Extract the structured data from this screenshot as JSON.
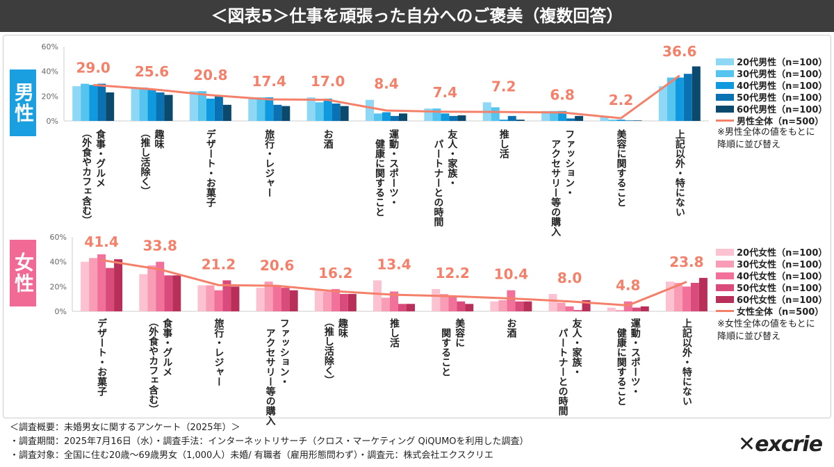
{
  "title": "＜図表5＞仕事を頑張った自分へのご褒美（複数回答）",
  "chart_data": [
    {
      "type": "bar+line",
      "group": "男性",
      "ylim": [
        0,
        60
      ],
      "yticks": [
        "60%",
        "40%",
        "20%",
        "0%"
      ],
      "categories": [
        [
          "食事・グルメ",
          "（外食やカフェ含む）"
        ],
        [
          "趣味",
          "（推し活除く）"
        ],
        [
          "デザート・お菓子"
        ],
        [
          "旅行・レジャー"
        ],
        [
          "お酒"
        ],
        [
          "運動・スポーツ・",
          "健康に関すること"
        ],
        [
          "友人・家族・",
          "パートナーとの時間"
        ],
        [
          "推し活"
        ],
        [
          "ファッション・",
          "アクセサリー等の購入"
        ],
        [
          "美容に関すること"
        ],
        [
          "上記以外・特にない"
        ]
      ],
      "series": [
        {
          "name": "20代男性（n=100）",
          "color": "#8fd8f5",
          "values": [
            28,
            27,
            24,
            19,
            19,
            17,
            10,
            15,
            8,
            4,
            28
          ]
        },
        {
          "name": "30代男性（n=100）",
          "color": "#55c4ef",
          "values": [
            30,
            27,
            24,
            19,
            15,
            6,
            10,
            11,
            8,
            1,
            35
          ]
        },
        {
          "name": "40代男性（n=100）",
          "color": "#0f9ae0",
          "values": [
            29,
            26,
            18,
            19,
            18,
            7,
            6,
            1,
            8,
            1,
            35
          ]
        },
        {
          "name": "50代男性（n=100）",
          "color": "#0a72b2",
          "values": [
            30,
            23,
            20,
            13,
            14,
            4,
            4,
            4,
            2,
            0.4,
            38
          ]
        },
        {
          "name": "60代男性（n=100）",
          "color": "#0b4a6c",
          "values": [
            23,
            21,
            13,
            12,
            12,
            6,
            4.5,
            1,
            4,
            0.4,
            44
          ]
        }
      ],
      "line": {
        "name": "男性全体（n=500）",
        "color": "#f4806a",
        "values": [
          29.0,
          25.6,
          20.8,
          17.4,
          17.0,
          8.4,
          7.4,
          7.2,
          6.8,
          2.2,
          36.6
        ],
        "labels": [
          "29.0",
          "25.6",
          "20.8",
          "17.4",
          "17.0",
          "8.4",
          "7.4",
          "7.2",
          "6.8",
          "2.2",
          "36.6"
        ]
      },
      "note": [
        "※男性全体の値をもとに",
        "降順に並び替え"
      ]
    },
    {
      "type": "bar+line",
      "group": "女性",
      "ylim": [
        0,
        60
      ],
      "yticks": [
        "60%",
        "40%",
        "20%",
        "0%"
      ],
      "categories": [
        [
          "デザート・お菓子"
        ],
        [
          "食事・グルメ",
          "（外食やカフェ含む）"
        ],
        [
          "旅行・レジャー"
        ],
        [
          "ファッション・",
          "アクセサリー等の購入"
        ],
        [
          "趣味",
          "（推し活除く）"
        ],
        [
          "推し活"
        ],
        [
          "美容に",
          "関すること"
        ],
        [
          "お酒"
        ],
        [
          "友人・家族・",
          "パートナーとの時間"
        ],
        [
          "運動・スポーツ・",
          "健康に関すること"
        ],
        [
          "上記以外・特にない"
        ]
      ],
      "series": [
        {
          "name": "20代女性（n=100）",
          "color": "#fcc2d2",
          "values": [
            40,
            30,
            21,
            19,
            17,
            25,
            18,
            8,
            14,
            3,
            24
          ]
        },
        {
          "name": "30代女性（n=100）",
          "color": "#f99cb6",
          "values": [
            43,
            37,
            21,
            24,
            16,
            11,
            14,
            9,
            7,
            1,
            23
          ]
        },
        {
          "name": "40代女性（n=100）",
          "color": "#f2719b",
          "values": [
            46,
            40,
            17,
            20,
            18,
            16,
            12,
            17,
            4,
            8,
            20
          ]
        },
        {
          "name": "50代女性（n=100）",
          "color": "#d94b7a",
          "values": [
            35,
            29,
            25,
            19,
            14,
            6,
            8,
            8,
            1,
            3,
            23
          ]
        },
        {
          "name": "60代女性（n=100）",
          "color": "#b8305a",
          "values": [
            42,
            29,
            20,
            17,
            14,
            6,
            6,
            8,
            9,
            4,
            27
          ]
        }
      ],
      "line": {
        "name": "女性全体（n=500）",
        "color": "#f4806a",
        "values": [
          41.4,
          33.8,
          21.2,
          20.6,
          16.2,
          13.4,
          12.2,
          10.4,
          8.0,
          4.8,
          23.8
        ],
        "labels": [
          "41.4",
          "33.8",
          "21.2",
          "20.6",
          "16.2",
          "13.4",
          "12.2",
          "10.4",
          "8.0",
          "4.8",
          "23.8"
        ]
      },
      "note": [
        "※女性全体の値をもとに",
        "降順に並び替え"
      ]
    }
  ],
  "footer": [
    "＜調査概要：未婚男女に関するアンケート（2025年）＞",
    "・調査期間：2025年7月16日（水）・調査手法：インターネットリサーチ（クロス・マーケティング QiQUMOを利用した調査）",
    "・調査対象：全国に住む20歳～69歳男女（1,000人）未婚/ 有職者（雇用形態問わず）・調査元：株式会社エクスクリエ"
  ],
  "logo": "excrie"
}
